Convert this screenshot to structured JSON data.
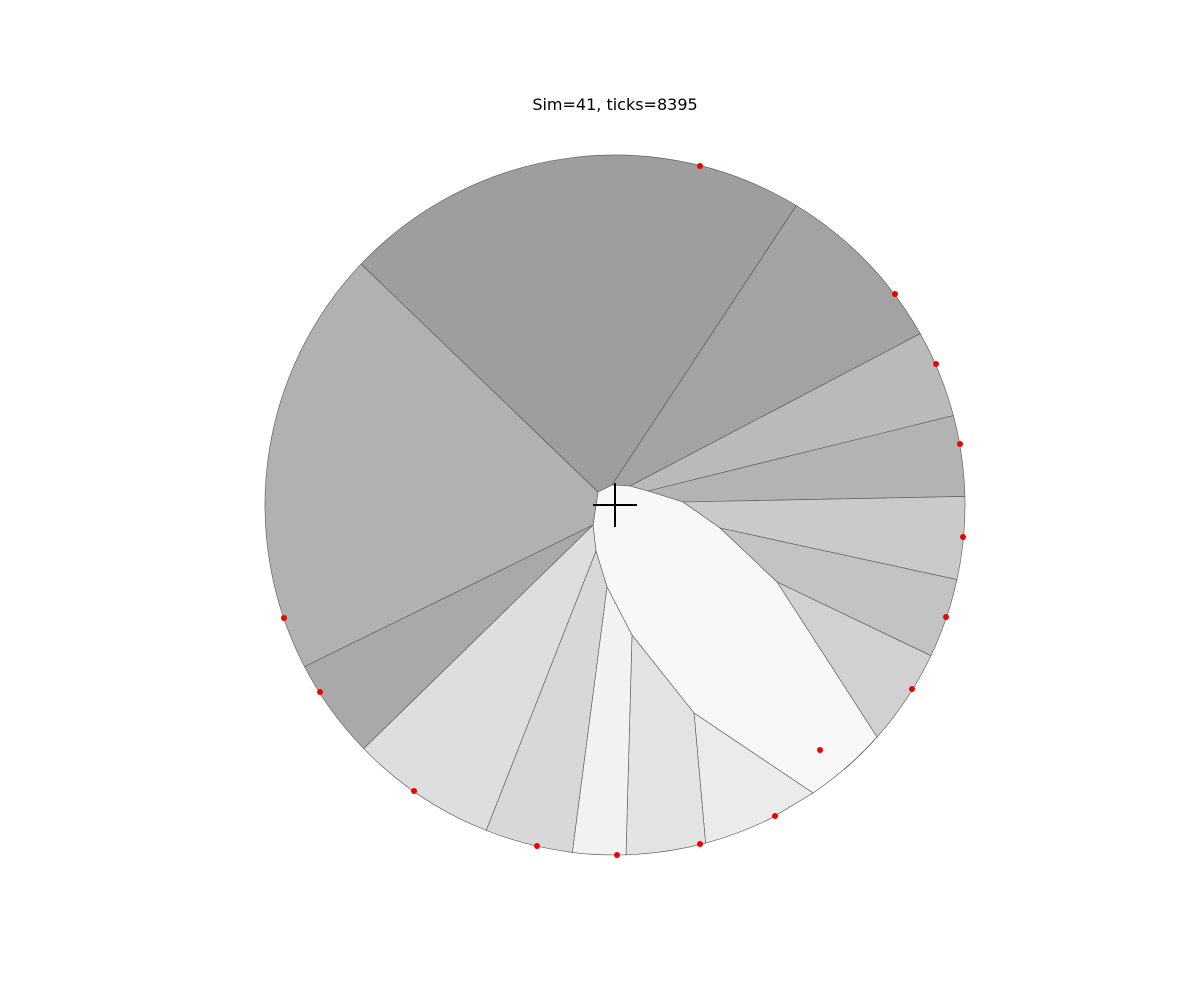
{
  "figure": {
    "title": "Sim=41, ticks=8395"
  },
  "colors": {
    "edge": "#555555",
    "marker": "#ee0000",
    "crosshair": "#000000"
  },
  "regions": [
    {
      "id": "r1",
      "shade": "#9e9e9e"
    },
    {
      "id": "r2",
      "shade": "#a3a3a3"
    },
    {
      "id": "r3",
      "shade": "#bababa"
    },
    {
      "id": "r4",
      "shade": "#b3b3b3"
    },
    {
      "id": "r5",
      "shade": "#cacaca"
    },
    {
      "id": "r6",
      "shade": "#c3c3c3"
    },
    {
      "id": "r7",
      "shade": "#d1d1d1"
    },
    {
      "id": "r8",
      "shade": "#f8f8f8"
    },
    {
      "id": "r9",
      "shade": "#ebebeb"
    },
    {
      "id": "r10",
      "shade": "#e3e3e3"
    },
    {
      "id": "r11",
      "shade": "#f2f2f2"
    },
    {
      "id": "r12",
      "shade": "#d8d8d8"
    },
    {
      "id": "r13",
      "shade": "#dedede"
    },
    {
      "id": "r14",
      "shade": "#a9a9a9"
    },
    {
      "id": "r15",
      "shade": "#b1b1b1"
    }
  ]
}
